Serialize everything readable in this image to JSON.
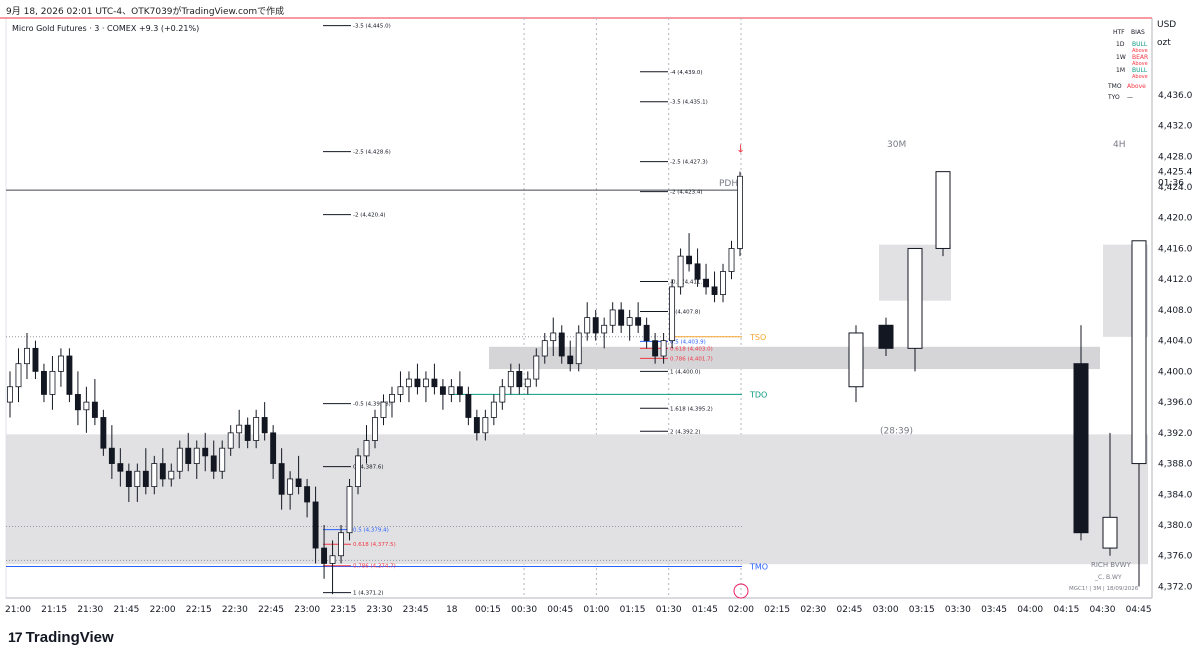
{
  "header": {
    "timestamp_line": "9月 18, 2026 02:01 UTC-4、OTK7039がTradingView.comで作成"
  },
  "legend": {
    "symbol": "Micro Gold Futures · 3 · COMEX",
    "change": "+9.3 (+0.21%)"
  },
  "price_scale": {
    "currency": "USD",
    "unit": "ozt",
    "countdown": "01:36"
  },
  "bias_table": {
    "headers": [
      "HTF",
      "BIAS"
    ],
    "rows": [
      [
        "1D",
        "BULL"
      ],
      [
        "1W",
        "BEAR"
      ],
      [
        "1M",
        "BULL"
      ]
    ],
    "above_tags": [
      "Above",
      "Above",
      "Above"
    ],
    "extra_rows": [
      [
        "TMO",
        "Above"
      ],
      [
        "TYO",
        "—"
      ]
    ],
    "colors": {
      "bull": "#089981",
      "bear": "#f23645",
      "above": "#f23645"
    }
  },
  "panels": {
    "p30m_title": "30M",
    "p4h_title": "4H",
    "countdown_label": "(28:39)"
  },
  "levels": {
    "tso": "TSO",
    "tdo": "TDO",
    "tmo": "TMO",
    "pdh": "PDH"
  },
  "signature": {
    "line1": "RICH BVWY",
    "line2": "_C, B.WY",
    "line3": "MGC1! | 3M | 18/09/2026"
  },
  "brand": "TradingView",
  "chart_data": {
    "type": "candlestick",
    "ylim": [
      4370.5,
      4446
    ],
    "y_ticks": [
      4372,
      4376,
      4380,
      4384,
      4388,
      4392,
      4396,
      4400,
      4404,
      4408,
      4412,
      4416,
      4420,
      4424,
      4428,
      4432,
      4436
    ],
    "x_ticks": [
      "21:00",
      "21:15",
      "21:30",
      "21:45",
      "22:00",
      "22:15",
      "22:30",
      "22:45",
      "23:00",
      "23:15",
      "23:30",
      "23:45",
      "18",
      "00:15",
      "00:30",
      "00:45",
      "01:00",
      "01:15",
      "01:30",
      "01:45",
      "02:00",
      "02:15",
      "02:30",
      "02:45",
      "03:00",
      "03:15",
      "03:30",
      "03:45",
      "04:00",
      "04:15",
      "04:30",
      "04:45"
    ],
    "current_price": 4425.4,
    "fib_labels": [
      {
        "text": "-3.5 (4,445.0)",
        "value": 4445.0
      },
      {
        "text": "-4 (4,439.0)",
        "value": 4439.0
      },
      {
        "text": "-3.5 (4,435.1)",
        "value": 4435.1
      },
      {
        "text": "-2.5 (4,428.6)",
        "value": 4428.6
      },
      {
        "text": "-2.5 (4,427.3)",
        "value": 4427.3
      },
      {
        "text": "-2 (4,423.4)",
        "value": 4423.4
      },
      {
        "text": "-2 (4,420.4)",
        "value": 4420.4
      },
      {
        "text": "-0.5 (4,411.7)",
        "value": 4411.7
      },
      {
        "text": "0 (4,407.8)",
        "value": 4407.8
      },
      {
        "text": "0.5 (4,403.9)",
        "value": 4403.9
      },
      {
        "text": "0.618 (4,403.0)",
        "value": 4403.0
      },
      {
        "text": "0.786 (4,401.7)",
        "value": 4401.7
      },
      {
        "text": "1 (4,400.0)",
        "value": 4400.0
      },
      {
        "text": "-0.5 (4,395.8)",
        "value": 4395.8
      },
      {
        "text": "1.618 (4,395.2)",
        "value": 4395.2
      },
      {
        "text": "2 (4,392.2)",
        "value": 4392.2
      },
      {
        "text": "0 (4,387.6)",
        "value": 4387.6
      },
      {
        "text": "0.5 (4,379.4)",
        "value": 4379.4
      },
      {
        "text": "0.618 (4,377.5)",
        "value": 4377.5
      },
      {
        "text": "0.786 (4,374.7)",
        "value": 4374.7
      },
      {
        "text": "1 (4,371.2)",
        "value": 4371.2
      }
    ],
    "ohlc": [
      [
        4396,
        4400,
        4394,
        4398
      ],
      [
        4398,
        4403,
        4396,
        4401
      ],
      [
        4401,
        4405,
        4399,
        4403
      ],
      [
        4403,
        4404,
        4399,
        4400
      ],
      [
        4400,
        4401,
        4396,
        4397
      ],
      [
        4397,
        4402,
        4395,
        4400
      ],
      [
        4400,
        4403,
        4398,
        4402
      ],
      [
        4402,
        4403,
        4396,
        4397
      ],
      [
        4397,
        4400,
        4393,
        4395
      ],
      [
        4395,
        4398,
        4392,
        4396
      ],
      [
        4396,
        4399,
        4393,
        4394
      ],
      [
        4394,
        4395,
        4389,
        4390
      ],
      [
        4390,
        4393,
        4386,
        4388
      ],
      [
        4388,
        4390,
        4385,
        4387
      ],
      [
        4387,
        4388,
        4383,
        4385
      ],
      [
        4385,
        4388,
        4383,
        4387
      ],
      [
        4387,
        4390,
        4384,
        4385
      ],
      [
        4385,
        4389,
        4384,
        4388
      ],
      [
        4388,
        4390,
        4385,
        4386
      ],
      [
        4386,
        4388,
        4385,
        4387
      ],
      [
        4387,
        4391,
        4386,
        4390
      ],
      [
        4390,
        4392,
        4387,
        4388
      ],
      [
        4388,
        4391,
        4386,
        4390
      ],
      [
        4390,
        4392,
        4387,
        4389
      ],
      [
        4389,
        4391,
        4386,
        4387
      ],
      [
        4387,
        4391,
        4386,
        4390
      ],
      [
        4390,
        4393,
        4389,
        4392
      ],
      [
        4392,
        4395,
        4390,
        4393
      ],
      [
        4393,
        4394,
        4390,
        4391
      ],
      [
        4391,
        4395,
        4390,
        4394
      ],
      [
        4394,
        4396,
        4391,
        4392
      ],
      [
        4392,
        4393,
        4386,
        4388
      ],
      [
        4388,
        4390,
        4382,
        4384
      ],
      [
        4384,
        4387,
        4382,
        4386
      ],
      [
        4386,
        4389,
        4384,
        4385
      ],
      [
        4385,
        4386,
        4381,
        4383
      ],
      [
        4383,
        4385,
        4375,
        4377
      ],
      [
        4377,
        4380,
        4373,
        4375
      ],
      [
        4375,
        4378,
        4371,
        4376
      ],
      [
        4376,
        4380,
        4375,
        4379
      ],
      [
        4379,
        4386,
        4378,
        4385
      ],
      [
        4385,
        4390,
        4384,
        4389
      ],
      [
        4389,
        4393,
        4388,
        4391
      ],
      [
        4391,
        4395,
        4390,
        4394
      ],
      [
        4394,
        4397,
        4393,
        4396
      ],
      [
        4396,
        4398,
        4394,
        4397
      ],
      [
        4397,
        4400,
        4396,
        4398
      ],
      [
        4398,
        4400,
        4396,
        4399
      ],
      [
        4399,
        4401,
        4397,
        4398
      ],
      [
        4398,
        4400,
        4396,
        4399
      ],
      [
        4399,
        4401,
        4397,
        4398
      ],
      [
        4398,
        4399,
        4395,
        4397
      ],
      [
        4397,
        4399,
        4396,
        4398
      ],
      [
        4398,
        4400,
        4396,
        4397
      ],
      [
        4397,
        4398,
        4393,
        4394
      ],
      [
        4394,
        4395,
        4391,
        4392
      ],
      [
        4392,
        4395,
        4391,
        4394
      ],
      [
        4394,
        4397,
        4393,
        4396
      ],
      [
        4396,
        4399,
        4395,
        4398
      ],
      [
        4398,
        4401,
        4397,
        4400
      ],
      [
        4400,
        4401,
        4397,
        4398
      ],
      [
        4398,
        4400,
        4397,
        4399
      ],
      [
        4399,
        4403,
        4398,
        4402
      ],
      [
        4402,
        4405,
        4401,
        4404
      ],
      [
        4404,
        4407,
        4402,
        4405
      ],
      [
        4405,
        4406,
        4401,
        4402
      ],
      [
        4402,
        4404,
        4400,
        4401
      ],
      [
        4401,
        4406,
        4400,
        4405
      ],
      [
        4405,
        4409,
        4404,
        4407
      ],
      [
        4407,
        4408,
        4404,
        4405
      ],
      [
        4405,
        4407,
        4403,
        4406
      ],
      [
        4406,
        4409,
        4405,
        4408
      ],
      [
        4408,
        4409,
        4405,
        4406
      ],
      [
        4406,
        4408,
        4404,
        4407
      ],
      [
        4407,
        4409,
        4405,
        4406
      ],
      [
        4406,
        4407,
        4403,
        4404
      ],
      [
        4404,
        4405,
        4401,
        4402
      ],
      [
        4402,
        4405,
        4401,
        4404
      ],
      [
        4404,
        4412,
        4403,
        4411
      ],
      [
        4411,
        4416,
        4410,
        4415
      ],
      [
        4415,
        4418,
        4413,
        4414
      ],
      [
        4414,
        4416,
        4411,
        4412
      ],
      [
        4412,
        4414,
        4410,
        4411
      ],
      [
        4411,
        4413,
        4409,
        4410
      ],
      [
        4410,
        4414,
        4409,
        4413
      ],
      [
        4413,
        4417,
        4412,
        4416
      ],
      [
        4416,
        4426,
        4415,
        4425.4
      ]
    ],
    "htf_30m": [
      [
        4398,
        4406,
        4396,
        4405
      ],
      [
        4406,
        4407,
        4402,
        4403
      ],
      [
        4403,
        4416,
        4400,
        4416
      ],
      [
        4416,
        4426,
        4415,
        4426
      ]
    ],
    "htf_4h": [
      [
        4401,
        4406,
        4378,
        4379
      ],
      [
        4377,
        4392,
        4376,
        4381
      ],
      [
        4388,
        4417,
        4372,
        4417
      ]
    ]
  }
}
